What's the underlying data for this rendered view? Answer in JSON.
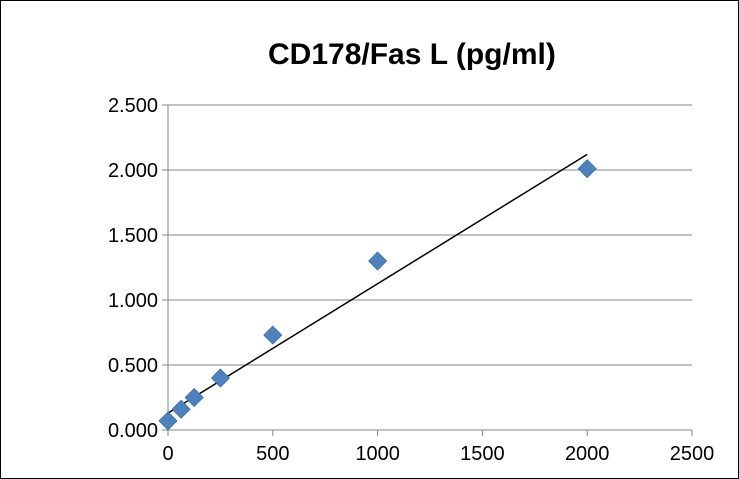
{
  "chart_data": {
    "type": "scatter",
    "title": "CD178/Fas L (pg/ml)",
    "xlabel": "",
    "ylabel": "",
    "xlim": [
      0,
      2500
    ],
    "ylim": [
      0,
      2.5
    ],
    "x_ticks": [
      0,
      500,
      1000,
      1500,
      2000,
      2500
    ],
    "x_tick_labels": [
      "0",
      "500",
      "1000",
      "1500",
      "2000",
      "2500"
    ],
    "y_ticks": [
      0,
      0.5,
      1.0,
      1.5,
      2.0,
      2.5
    ],
    "y_tick_labels": [
      "0.000",
      "0.500",
      "1.000",
      "1.500",
      "2.000",
      "2.500"
    ],
    "grid": "horizontal",
    "legend": "none",
    "series": [
      {
        "marker": "diamond",
        "color": "#4f81bd",
        "x": [
          0,
          62.5,
          125,
          250,
          500,
          1000,
          2000
        ],
        "y": [
          0.07,
          0.16,
          0.25,
          0.4,
          0.73,
          1.3,
          2.01
        ]
      }
    ],
    "trendline": {
      "type": "linear",
      "color": "#000000",
      "x": [
        0,
        2000
      ],
      "y": [
        0.13,
        2.12
      ]
    }
  }
}
